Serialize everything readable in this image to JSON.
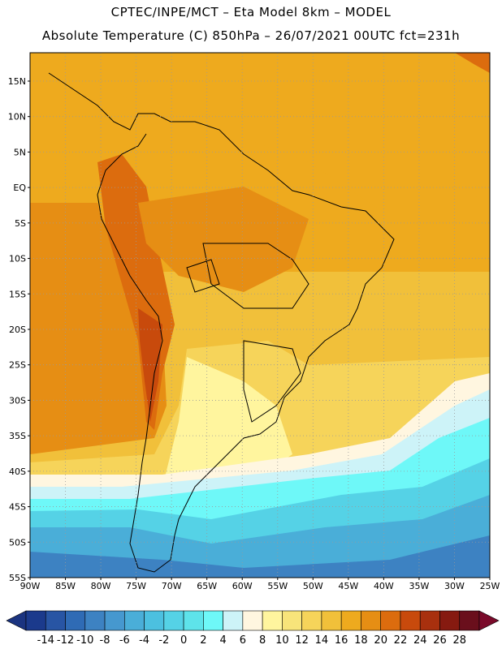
{
  "header": {
    "line1": "CPTEC/INPE/MCT –  Eta Model 8km – MODEL",
    "line2": "Absolute Temperature (C) 850hPa – 26/07/2021 00UTC fct=231h"
  },
  "map": {
    "region": "South America",
    "variable": "Absolute Temperature (C) 850hPa",
    "lat_labels": [
      "15N",
      "10N",
      "5N",
      "EQ",
      "5S",
      "10S",
      "15S",
      "20S",
      "25S",
      "30S",
      "35S",
      "40S",
      "45S",
      "50S",
      "55S"
    ],
    "lon_labels": [
      "90W",
      "85W",
      "80W",
      "75W",
      "70W",
      "65W",
      "60W",
      "55W",
      "50W",
      "45W",
      "40W",
      "35W",
      "30W",
      "25W"
    ],
    "lat_range": [
      -55,
      19
    ],
    "lon_range": [
      -90,
      -25
    ],
    "grid": "dotted"
  },
  "colorbar": {
    "ticks": [
      "-14",
      "-12",
      "-10",
      "-8",
      "-6",
      "-4",
      "-2",
      "0",
      "2",
      "4",
      "6",
      "8",
      "10",
      "12",
      "14",
      "16",
      "18",
      "20",
      "22",
      "24",
      "26",
      "28"
    ],
    "colors": [
      "#1b3a8c",
      "#2855a4",
      "#2f6bb5",
      "#3d82c2",
      "#4698cf",
      "#4aaed8",
      "#4cc0e0",
      "#55d2e6",
      "#5ee3ea",
      "#6ef8f8",
      "#cdf3f8",
      "#fff6e0",
      "#fff59e",
      "#f8e47a",
      "#f6d45a",
      "#f1c03a",
      "#eeaa1e",
      "#e68e14",
      "#dc6c0e",
      "#c84a0c",
      "#a8300e",
      "#861a10",
      "#6a0f1c"
    ],
    "under_color": "#1b3480",
    "over_color": "#7a0a2a"
  }
}
